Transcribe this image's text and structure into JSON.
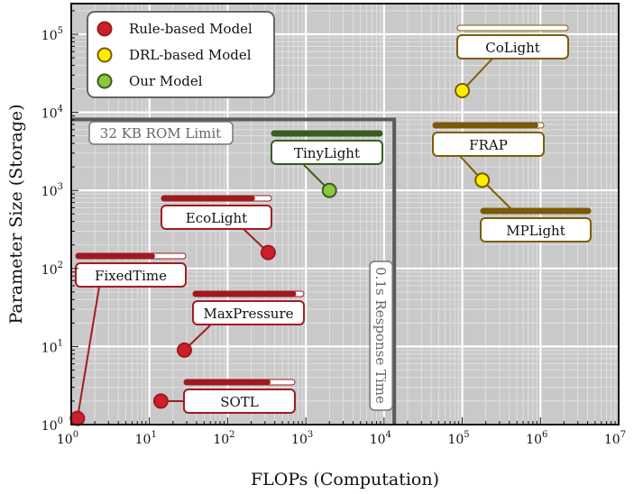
{
  "chart_data": {
    "type": "scatter",
    "xlabel": "FLOPs (Computation)",
    "ylabel": "Parameter Size (Storage)",
    "xscale": "log",
    "yscale": "log",
    "xlim": [
      1,
      10000000
    ],
    "ylim": [
      1,
      250000
    ],
    "x_ticks": [
      {
        "b": "10",
        "e": "0"
      },
      {
        "b": "10",
        "e": "1"
      },
      {
        "b": "10",
        "e": "2"
      },
      {
        "b": "10",
        "e": "3"
      },
      {
        "b": "10",
        "e": "4"
      },
      {
        "b": "10",
        "e": "5"
      },
      {
        "b": "10",
        "e": "6"
      },
      {
        "b": "10",
        "e": "7"
      }
    ],
    "y_ticks": [
      {
        "b": "10",
        "e": "0"
      },
      {
        "b": "10",
        "e": "1"
      },
      {
        "b": "10",
        "e": "2"
      },
      {
        "b": "10",
        "e": "3"
      },
      {
        "b": "10",
        "e": "4"
      },
      {
        "b": "10",
        "e": "5"
      }
    ],
    "grid": true,
    "legend": {
      "placement": "top-left",
      "entries": [
        {
          "label": "Rule-based Model",
          "group": "rule"
        },
        {
          "label": "DRL-based Model",
          "group": "drl"
        },
        {
          "label": "Our Model",
          "group": "ours"
        }
      ]
    },
    "colors": {
      "rule": {
        "fill": "#cc1f2a",
        "stroke": "#9e1a1f"
      },
      "drl": {
        "fill": "#ffee00",
        "stroke": "#7d5d05"
      },
      "ours": {
        "fill": "#8dc63f",
        "stroke": "#3b5c20"
      },
      "background": "#c9c9c9",
      "limit": "#5a5a5a"
    },
    "points": [
      {
        "name": "FixedTime",
        "group": "rule",
        "x": 1.2,
        "y": 1.2,
        "bar": 0.72
      },
      {
        "name": "SOTL",
        "group": "rule",
        "x": 14,
        "y": 2,
        "bar": 0.78
      },
      {
        "name": "MaxPressure",
        "group": "rule",
        "x": 28,
        "y": 9,
        "bar": 0.93
      },
      {
        "name": "EcoLight",
        "group": "rule",
        "x": 330,
        "y": 160,
        "bar": 0.85
      },
      {
        "name": "TinyLight",
        "group": "ours",
        "x": 2000,
        "y": 1000,
        "bar": 1.0
      },
      {
        "name": "CoLight",
        "group": "drl",
        "x": 100000,
        "y": 19000,
        "bar": 0.0
      },
      {
        "name": "FRAP",
        "group": "drl",
        "x": 180000,
        "y": 1350,
        "bar": 0.95
      },
      {
        "name": "MPLight",
        "group": "drl",
        "x": 180000,
        "y": 1350,
        "bar": 1.0
      }
    ],
    "limits": {
      "storage": {
        "label": "32 KB ROM Limit",
        "y": 8100
      },
      "response": {
        "label": "0.1s Response Time",
        "x": 13500
      }
    }
  }
}
